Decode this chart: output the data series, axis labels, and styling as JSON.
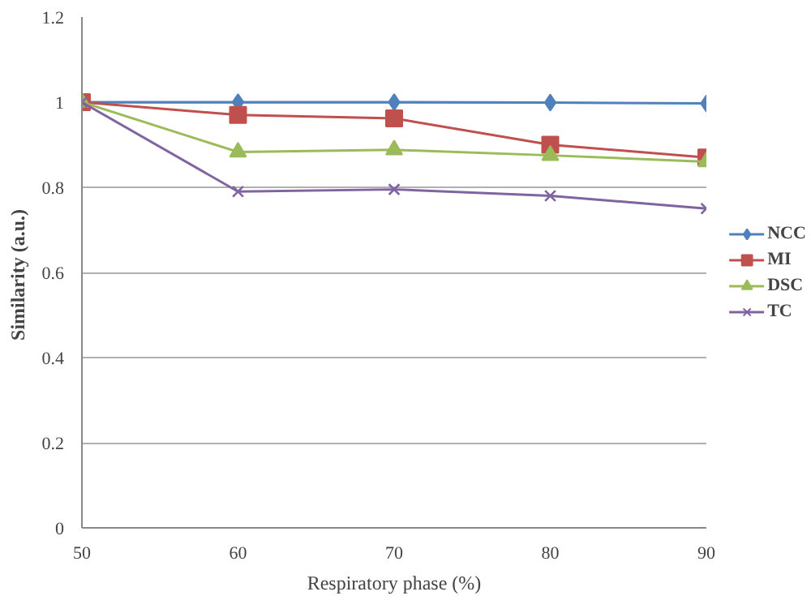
{
  "chart_data": {
    "type": "line",
    "xlabel": "Respiratory phase (%)",
    "ylabel": "Similarity  (a.u.)",
    "x": [
      50,
      60,
      70,
      80,
      90
    ],
    "series": [
      {
        "name": "NCC",
        "color": "#4f81bd",
        "marker": "diamond",
        "values": [
          1.0,
          1.0,
          1.0,
          0.999,
          0.997
        ]
      },
      {
        "name": "MI",
        "color": "#c0504d",
        "marker": "square",
        "values": [
          1.0,
          0.97,
          0.962,
          0.9,
          0.87
        ]
      },
      {
        "name": "DSC",
        "color": "#9bbb59",
        "marker": "triangle",
        "values": [
          1.0,
          0.883,
          0.888,
          0.875,
          0.86
        ]
      },
      {
        "name": "TC",
        "color": "#8064a2",
        "marker": "cross",
        "values": [
          1.0,
          0.79,
          0.795,
          0.78,
          0.75
        ]
      }
    ],
    "xlim": [
      50,
      90
    ],
    "xticks": [
      50,
      60,
      70,
      80,
      90
    ],
    "ylim": [
      0,
      1.2
    ],
    "yticks": [
      0,
      0.2,
      0.4,
      0.6,
      0.8,
      1,
      1.2
    ],
    "grid": "y",
    "legend": "right"
  }
}
